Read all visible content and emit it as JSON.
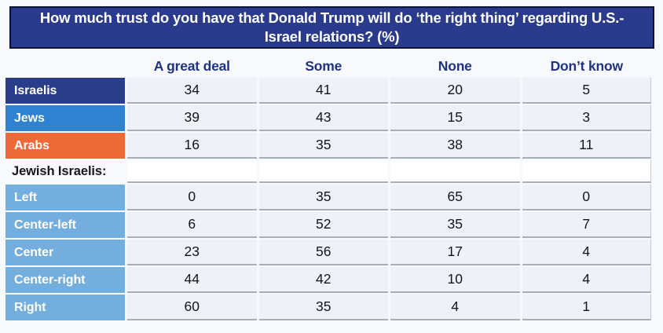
{
  "chart_data": {
    "type": "table",
    "title": "How much trust do you have that Donald Trump will do ‘the right thing’ regarding U.S.-Israel relations? (%)",
    "columns": [
      "A great deal",
      "Some",
      "None",
      "Don’t know"
    ],
    "rows": [
      {
        "label": "Israelis",
        "style": "navy",
        "values": [
          34,
          41,
          20,
          5
        ]
      },
      {
        "label": "Jews",
        "style": "blue",
        "values": [
          39,
          43,
          15,
          3
        ]
      },
      {
        "label": "Arabs",
        "style": "orange",
        "values": [
          16,
          35,
          38,
          11
        ]
      },
      {
        "label": "Jewish Israelis:",
        "section": true
      },
      {
        "label": "Left",
        "style": "lightblue",
        "values": [
          0,
          35,
          65,
          0
        ]
      },
      {
        "label": "Center-left",
        "style": "lightblue",
        "values": [
          6,
          52,
          35,
          7
        ]
      },
      {
        "label": "Center",
        "style": "lightblue",
        "values": [
          23,
          56,
          17,
          4
        ]
      },
      {
        "label": "Center-right",
        "style": "lightblue",
        "values": [
          44,
          42,
          10,
          4
        ]
      },
      {
        "label": "Right",
        "style": "lightblue",
        "values": [
          60,
          35,
          4,
          1
        ]
      }
    ],
    "layout": {
      "grid": "horizontal separators between data rows",
      "legend": "none"
    }
  },
  "colors": {
    "page_bg": "#f8f9fc",
    "title_bg": "#2a3a8c",
    "title_border": "#0d1238",
    "title_text": "#ffffff",
    "header_text": "#1e3382",
    "row_navy": "#2a3d8a",
    "row_blue": "#2e82d0",
    "row_orange": "#ed6a38",
    "row_lightblue": "#74aede",
    "cell_bg": "#eef1f8",
    "section_bg": "#ffffff",
    "line": "#a9adb5",
    "value_text": "#16161a"
  }
}
